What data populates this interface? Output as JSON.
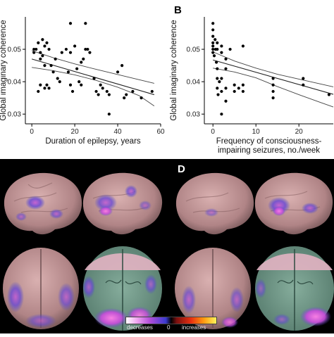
{
  "panels": {
    "b_letter": "B",
    "d_letter": "D"
  },
  "chart_data": [
    {
      "type": "scatter",
      "title": "",
      "xlabel": "Duration of epilepsy, years",
      "ylabel": "Global imaginary coherence",
      "xlim": [
        -3,
        60
      ],
      "ylim": [
        0.027,
        0.06
      ],
      "xticks": [
        "0",
        "20",
        "40",
        "60"
      ],
      "yticks": [
        "0.03",
        "0.04",
        "0.05"
      ],
      "grid": false,
      "points": [
        [
          1,
          0.05
        ],
        [
          1,
          0.049
        ],
        [
          2,
          0.05
        ],
        [
          3,
          0.052
        ],
        [
          4,
          0.049
        ],
        [
          4,
          0.047
        ],
        [
          5,
          0.053
        ],
        [
          5,
          0.048
        ],
        [
          6,
          0.051
        ],
        [
          6,
          0.045
        ],
        [
          7,
          0.052
        ],
        [
          8,
          0.05
        ],
        [
          3,
          0.037
        ],
        [
          4,
          0.039
        ],
        [
          6,
          0.038
        ],
        [
          7,
          0.039
        ],
        [
          8,
          0.038
        ],
        [
          9,
          0.045
        ],
        [
          10,
          0.043
        ],
        [
          11,
          0.047
        ],
        [
          12,
          0.041
        ],
        [
          13,
          0.04
        ],
        [
          14,
          0.049
        ],
        [
          16,
          0.05
        ],
        [
          17,
          0.043
        ],
        [
          18,
          0.058
        ],
        [
          18,
          0.049
        ],
        [
          18,
          0.039
        ],
        [
          19,
          0.037
        ],
        [
          20,
          0.051
        ],
        [
          21,
          0.044
        ],
        [
          22,
          0.04
        ],
        [
          23,
          0.039
        ],
        [
          23,
          0.046
        ],
        [
          24,
          0.047
        ],
        [
          25,
          0.05
        ],
        [
          25,
          0.058
        ],
        [
          26,
          0.05
        ],
        [
          27,
          0.049
        ],
        [
          29,
          0.041
        ],
        [
          30,
          0.037
        ],
        [
          31,
          0.036
        ],
        [
          32,
          0.039
        ],
        [
          33,
          0.038
        ],
        [
          35,
          0.037
        ],
        [
          36,
          0.03
        ],
        [
          36,
          0.036
        ],
        [
          40,
          0.043
        ],
        [
          42,
          0.045
        ],
        [
          43,
          0.035
        ],
        [
          44,
          0.036
        ],
        [
          47,
          0.037
        ],
        [
          51,
          0.035
        ],
        [
          56,
          0.037
        ]
      ],
      "fit": {
        "x": [
          0,
          57
        ],
        "y": [
          0.047,
          0.036
        ]
      },
      "ci_upper": {
        "x": [
          0,
          10,
          20,
          30,
          40,
          50,
          57
        ],
        "y": [
          0.0496,
          0.0474,
          0.0455,
          0.0438,
          0.0422,
          0.0406,
          0.0395
        ]
      },
      "ci_lower": {
        "x": [
          0,
          10,
          20,
          30,
          40,
          50,
          57
        ],
        "y": [
          0.0444,
          0.0434,
          0.0421,
          0.0404,
          0.0383,
          0.0357,
          0.0325
        ]
      }
    },
    {
      "type": "scatter",
      "title": "",
      "xlabel": "Frequency of consciousness-impairing seizures, no./week",
      "xlabel_lines": [
        "Frequency of consciousness-",
        "impairing seizures, no./week"
      ],
      "ylabel": "Global imaginary coherence",
      "xlim": [
        -2,
        28
      ],
      "ylim": [
        0.027,
        0.06
      ],
      "xticks": [
        "0",
        "10",
        "20"
      ],
      "yticks": [
        "0.03",
        "0.04",
        "0.05"
      ],
      "grid": false,
      "points": [
        [
          0,
          0.058
        ],
        [
          0,
          0.056
        ],
        [
          0,
          0.054
        ],
        [
          0,
          0.052
        ],
        [
          0,
          0.051
        ],
        [
          0,
          0.05
        ],
        [
          0,
          0.049
        ],
        [
          0.3,
          0.048
        ],
        [
          0.5,
          0.053
        ],
        [
          0.6,
          0.05
        ],
        [
          0.8,
          0.046
        ],
        [
          1,
          0.052
        ],
        [
          1,
          0.05
        ],
        [
          1,
          0.044
        ],
        [
          1,
          0.041
        ],
        [
          1,
          0.038
        ],
        [
          1.2,
          0.036
        ],
        [
          1.5,
          0.04
        ],
        [
          2,
          0.051
        ],
        [
          2,
          0.049
        ],
        [
          2,
          0.041
        ],
        [
          2,
          0.037
        ],
        [
          2,
          0.03
        ],
        [
          3,
          0.047
        ],
        [
          3,
          0.044
        ],
        [
          3,
          0.038
        ],
        [
          3,
          0.034
        ],
        [
          4,
          0.05
        ],
        [
          5,
          0.039
        ],
        [
          5,
          0.037
        ],
        [
          6,
          0.038
        ],
        [
          7,
          0.051
        ],
        [
          7,
          0.039
        ],
        [
          7,
          0.037
        ],
        [
          14,
          0.041
        ],
        [
          14,
          0.039
        ],
        [
          14,
          0.037
        ],
        [
          14,
          0.035
        ],
        [
          21,
          0.041
        ],
        [
          21,
          0.039
        ],
        [
          27,
          0.036
        ]
      ],
      "fit": {
        "x": [
          0,
          28
        ],
        "y": [
          0.0467,
          0.0361
        ]
      },
      "ci_upper": {
        "x": [
          0,
          5,
          10,
          15,
          20,
          25,
          28
        ],
        "y": [
          0.0492,
          0.0464,
          0.0442,
          0.0423,
          0.0408,
          0.0393,
          0.0384
        ]
      },
      "ci_lower": {
        "x": [
          0,
          5,
          10,
          15,
          20,
          25,
          28
        ],
        "y": [
          0.0442,
          0.043,
          0.0412,
          0.0385,
          0.036,
          0.0336,
          0.0322
        ]
      }
    }
  ],
  "legend": {
    "decreases": "decreases",
    "zero": "0",
    "increases": "increases"
  },
  "colors": {
    "cortex": "#b58a8c",
    "decrease": "#4a4ad0",
    "decrease_strong": "#c257d8",
    "slice_green": "#6f9a8a",
    "slice_pink": "#e3b3c3"
  }
}
